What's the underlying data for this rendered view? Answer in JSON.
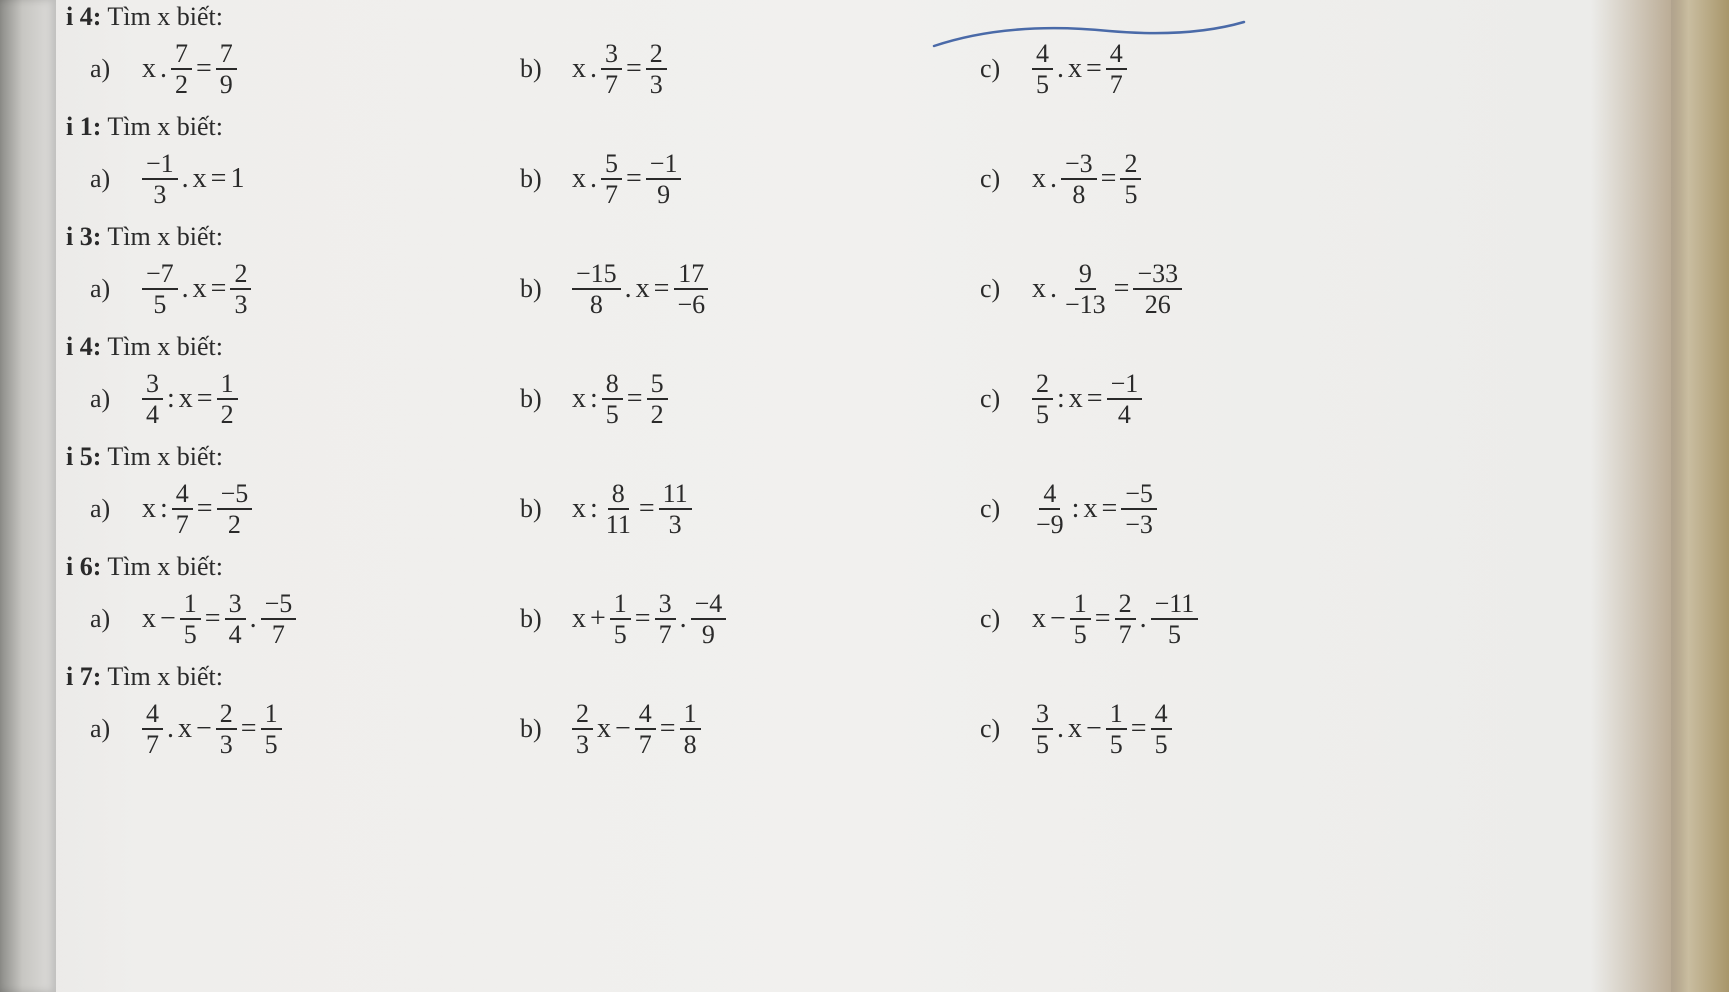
{
  "title_prefix": "i",
  "title_word": "Tìm x biết:",
  "labels": {
    "a": "a)",
    "b": "b)",
    "c": "c)"
  },
  "ops": {
    "dot": ".",
    "colon": ":",
    "eq": "=",
    "plus": "+",
    "minus": "−"
  },
  "var": "x",
  "pencil_color": "#4a6aa8",
  "problems": [
    {
      "num": "4",
      "a": {
        "parts": [
          "x",
          ".",
          {
            "n": "7",
            "d": "2"
          },
          "=",
          {
            "n": "7",
            "d": "9"
          }
        ]
      },
      "b": {
        "parts": [
          "x",
          ".",
          {
            "n": "3",
            "d": "7"
          },
          "=",
          {
            "n": "2",
            "d": "3"
          }
        ]
      },
      "c": {
        "parts": [
          {
            "n": "4",
            "d": "5"
          },
          ".",
          "x",
          "=",
          {
            "n": "4",
            "d": "7"
          }
        ]
      }
    },
    {
      "num": "1",
      "a": {
        "parts": [
          {
            "n": "−1",
            "d": "3"
          },
          ".",
          "x",
          "=",
          "1"
        ]
      },
      "b": {
        "parts": [
          "x",
          ".",
          {
            "n": "5",
            "d": "7"
          },
          "=",
          {
            "n": "−1",
            "d": "9"
          }
        ]
      },
      "c": {
        "parts": [
          "x",
          ".",
          {
            "n": "−3",
            "d": "8"
          },
          "=",
          {
            "n": "2",
            "d": "5"
          }
        ]
      }
    },
    {
      "num": "3",
      "a": {
        "parts": [
          {
            "n": "−7",
            "d": "5"
          },
          ".",
          "x",
          "=",
          {
            "n": "2",
            "d": "3"
          }
        ]
      },
      "b": {
        "parts": [
          {
            "n": "−15",
            "d": "8"
          },
          ".",
          "x",
          "=",
          {
            "n": "17",
            "d": "−6"
          }
        ]
      },
      "c": {
        "parts": [
          "x",
          ".",
          {
            "n": "9",
            "d": "−13"
          },
          "=",
          {
            "n": "−33",
            "d": "26"
          }
        ]
      }
    },
    {
      "num": "4",
      "a": {
        "parts": [
          {
            "n": "3",
            "d": "4"
          },
          ":",
          "x",
          "=",
          {
            "n": "1",
            "d": "2"
          }
        ]
      },
      "b": {
        "parts": [
          "x",
          ":",
          {
            "n": "8",
            "d": "5"
          },
          "=",
          {
            "n": "5",
            "d": "2"
          }
        ]
      },
      "c": {
        "parts": [
          {
            "n": "2",
            "d": "5"
          },
          ":",
          "x",
          "=",
          {
            "n": "−1",
            "d": "4"
          }
        ]
      }
    },
    {
      "num": "5",
      "a": {
        "parts": [
          "x",
          ":",
          {
            "n": "4",
            "d": "7"
          },
          "=",
          {
            "n": "−5",
            "d": "2"
          }
        ]
      },
      "b": {
        "parts": [
          "x",
          ":",
          {
            "n": "8",
            "d": "11"
          },
          "=",
          {
            "n": "11",
            "d": "3"
          }
        ]
      },
      "c": {
        "parts": [
          {
            "n": "4",
            "d": "−9"
          },
          ":",
          "x",
          "=",
          {
            "n": "−5",
            "d": "−3"
          }
        ]
      }
    },
    {
      "num": "6",
      "a": {
        "parts": [
          "x",
          "−",
          {
            "n": "1",
            "d": "5"
          },
          "=",
          {
            "n": "3",
            "d": "4"
          },
          ".",
          {
            "n": "−5",
            "d": "7"
          }
        ]
      },
      "b": {
        "parts": [
          "x",
          "+",
          {
            "n": "1",
            "d": "5"
          },
          "=",
          {
            "n": "3",
            "d": "7"
          },
          ".",
          {
            "n": "−4",
            "d": "9"
          }
        ]
      },
      "c": {
        "parts": [
          "x",
          "−",
          {
            "n": "1",
            "d": "5"
          },
          "=",
          {
            "n": "2",
            "d": "7"
          },
          ".",
          {
            "n": "−11",
            "d": "5"
          }
        ]
      }
    },
    {
      "num": "7",
      "a": {
        "parts": [
          {
            "n": "4",
            "d": "7"
          },
          ".",
          "x",
          "−",
          {
            "n": "2",
            "d": "3"
          },
          "=",
          {
            "n": "1",
            "d": "5"
          }
        ]
      },
      "b": {
        "parts": [
          {
            "n": "2",
            "d": "3"
          },
          "x",
          "−",
          {
            "n": "4",
            "d": "7"
          },
          "=",
          {
            "n": "1",
            "d": "8"
          }
        ]
      },
      "c": {
        "parts": [
          {
            "n": "3",
            "d": "5"
          },
          ".",
          "x",
          "−",
          {
            "n": "1",
            "d": "5"
          },
          "=",
          {
            "n": "4",
            "d": "5"
          }
        ]
      }
    }
  ]
}
